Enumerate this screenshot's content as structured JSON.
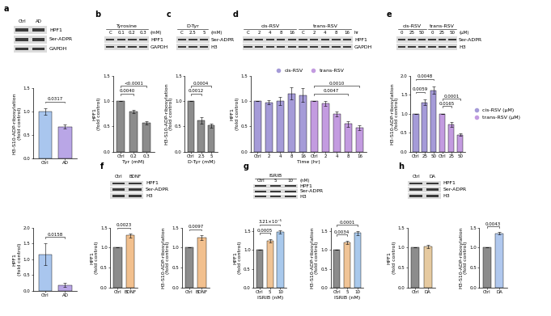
{
  "chart_data": [
    {
      "type": "bar",
      "y_label": "H3-S10-ADP-ribosylation\n(fold control)",
      "categories": [
        "Ctrl",
        "AD"
      ],
      "values": [
        1.0,
        0.68
      ],
      "errors": [
        0.07,
        0.04
      ],
      "colors": [
        "#a9c6ee",
        "#b9a6e6"
      ],
      "ylim": [
        0,
        1.5
      ],
      "yticks": [
        {
          "value": 0,
          "label": "0.0"
        },
        {
          "value": 0.5,
          "label": "0.5"
        },
        {
          "value": 1,
          "label": "1.0"
        },
        {
          "value": 1.5,
          "label": "1.5"
        }
      ],
      "annotations": [
        {
          "text": "0.0317",
          "from": 0,
          "to": 1
        }
      ]
    },
    {
      "type": "bar",
      "y_label": "HPF1\n(fold control)",
      "categories": [
        "Ctrl",
        "AD"
      ],
      "values": [
        1.15,
        0.18
      ],
      "errors": [
        0.35,
        0.06
      ],
      "colors": [
        "#a9c6ee",
        "#b9a6e6"
      ],
      "ylim": [
        0,
        2
      ],
      "yticks": [
        {
          "value": 0,
          "label": "0.0"
        },
        {
          "value": 0.5,
          "label": "0.5"
        },
        {
          "value": 1,
          "label": "1.0"
        },
        {
          "value": 1.5,
          "label": "1.5"
        },
        {
          "value": 2,
          "label": "2.0"
        }
      ],
      "annotations": [
        {
          "text": "0.0158",
          "from": 0,
          "to": 1
        }
      ]
    },
    {
      "type": "bar",
      "y_label": "HPF1\n(fold control)",
      "x_label": "Tyr (mM)",
      "categories": [
        "Ctrl",
        "0.2",
        "0.3"
      ],
      "values": [
        1.0,
        0.8,
        0.57
      ],
      "errors": [
        0.0,
        0.03,
        0.03
      ],
      "colors": [
        "#8c8c8c",
        "#8c8c8c",
        "#8c8c8c"
      ],
      "ylim": [
        0,
        1.5
      ],
      "yticks": [
        {
          "value": 0,
          "label": "0.0"
        },
        {
          "value": 0.5,
          "label": "0.5"
        },
        {
          "value": 1,
          "label": "1.0"
        },
        {
          "value": 1.5,
          "label": "1.5"
        }
      ],
      "annotations": [
        {
          "text": "0.0040",
          "from": 0,
          "to": 1
        },
        {
          "text": "<0.0001",
          "from": 0,
          "to": 2
        }
      ]
    },
    {
      "type": "bar",
      "y_label": "H3-S10-ADP-ribosylation\n(fold control)",
      "x_label": "D-Tyr (mM)",
      "categories": [
        "Ctrl",
        "2.5",
        "5"
      ],
      "values": [
        1.0,
        0.62,
        0.52
      ],
      "errors": [
        0.0,
        0.07,
        0.04
      ],
      "colors": [
        "#8c8c8c",
        "#8c8c8c",
        "#8c8c8c"
      ],
      "ylim": [
        0,
        1.5
      ],
      "yticks": [
        {
          "value": 0,
          "label": "0.0"
        },
        {
          "value": 0.5,
          "label": "0.5"
        },
        {
          "value": 1,
          "label": "1.0"
        },
        {
          "value": 1.5,
          "label": "1.5"
        }
      ],
      "annotations": [
        {
          "text": "0.0012",
          "from": 0,
          "to": 1
        },
        {
          "text": "0.0004",
          "from": 0,
          "to": 2
        }
      ]
    },
    {
      "type": "bar",
      "y_label": "HPF1\n(fold control)",
      "x_label": "Time (hr)",
      "categories": [
        "Ctrl",
        "2",
        "4",
        "8",
        "16",
        "Ctrl",
        "2",
        "4",
        "8",
        "16"
      ],
      "series": [
        {
          "name": "cis-RSV",
          "color": "#a59bd8",
          "values": [
            1.0,
            0.97,
            1.0,
            1.15,
            1.12,
            null,
            null,
            null,
            null,
            null
          ],
          "errors": [
            0.0,
            0.04,
            0.08,
            0.12,
            0.13,
            null,
            null,
            null,
            null,
            null
          ]
        },
        {
          "name": "trans-RSV",
          "color": "#c39be0",
          "values": [
            null,
            null,
            null,
            null,
            null,
            1.0,
            0.95,
            0.75,
            0.55,
            0.47
          ],
          "errors": [
            null,
            null,
            null,
            null,
            null,
            0.0,
            0.05,
            0.05,
            0.06,
            0.05
          ]
        }
      ],
      "legend": "top",
      "ylim": [
        0,
        1.5
      ],
      "yticks": [
        {
          "value": 0,
          "label": "0.0"
        },
        {
          "value": 0.5,
          "label": "0.5"
        },
        {
          "value": 1,
          "label": "1.0"
        },
        {
          "value": 1.5,
          "label": "1.5"
        }
      ],
      "annotations": [
        {
          "text": "0.0047",
          "from": 5,
          "to": 8
        },
        {
          "text": "0.0010",
          "from": 5,
          "to": 9
        }
      ]
    },
    {
      "type": "bar",
      "y_label": "H3-S10-ADP-ribosylation\n(fold control)",
      "categories": [
        "Ctrl",
        "25",
        "50",
        "Ctrl",
        "25",
        "50"
      ],
      "series": [
        {
          "name": "cis-RSV (μM)",
          "color": "#a59bd8",
          "values": [
            1.0,
            1.3,
            1.62,
            null,
            null,
            null
          ],
          "errors": [
            0.0,
            0.08,
            0.1,
            null,
            null,
            null
          ]
        },
        {
          "name": "trans-RSV (μM)",
          "color": "#c39be0",
          "values": [
            null,
            null,
            null,
            1.0,
            0.72,
            0.45
          ],
          "errors": [
            null,
            null,
            null,
            0.0,
            0.06,
            0.04
          ]
        }
      ],
      "legend": "right",
      "ylim": [
        0,
        2
      ],
      "yticks": [
        {
          "value": 0,
          "label": "0.0"
        },
        {
          "value": 0.5,
          "label": "0.5"
        },
        {
          "value": 1,
          "label": "1.0"
        },
        {
          "value": 1.5,
          "label": "1.5"
        },
        {
          "value": 2,
          "label": "2.0"
        }
      ],
      "annotations": [
        {
          "text": "0.0059",
          "from": 0,
          "to": 1
        },
        {
          "text": "0.0048",
          "from": 0,
          "to": 2
        },
        {
          "text": "0.0165",
          "from": 3,
          "to": 4
        },
        {
          "text": "0.0001",
          "from": 3,
          "to": 5
        }
      ]
    },
    {
      "type": "bar",
      "y_label": "HPF1\n(fold control)",
      "categories": [
        "Ctrl",
        "BDNF"
      ],
      "values": [
        1.0,
        1.3
      ],
      "errors": [
        0.0,
        0.05
      ],
      "colors": [
        "#8c8c8c",
        "#f2c08e"
      ],
      "ylim": [
        0,
        1.5
      ],
      "yticks": [
        {
          "value": 0,
          "label": "0.0"
        },
        {
          "value": 0.5,
          "label": "0.5"
        },
        {
          "value": 1,
          "label": "1.0"
        },
        {
          "value": 1.5,
          "label": "1.5"
        }
      ],
      "annotations": [
        {
          "text": "0.0023",
          "from": 0,
          "to": 1
        }
      ]
    },
    {
      "type": "bar",
      "y_label": "H3-S10-ADP-ribosylation\n(fold control)",
      "categories": [
        "Ctrl",
        "BDNF"
      ],
      "values": [
        1.0,
        1.25
      ],
      "errors": [
        0.0,
        0.06
      ],
      "colors": [
        "#8c8c8c",
        "#f2c08e"
      ],
      "ylim": [
        0,
        1.5
      ],
      "yticks": [
        {
          "value": 0,
          "label": "0.0"
        },
        {
          "value": 0.5,
          "label": "0.5"
        },
        {
          "value": 1,
          "label": "1.0"
        },
        {
          "value": 1.5,
          "label": "1.5"
        }
      ],
      "annotations": [
        {
          "text": "0.0097",
          "from": 0,
          "to": 1
        }
      ]
    },
    {
      "type": "bar",
      "y_label": "HPF1\n(fold control)",
      "x_label": "ISRIB (nM)",
      "categories": [
        "Ctrl",
        "5",
        "10"
      ],
      "values": [
        1.0,
        1.25,
        1.48
      ],
      "errors": [
        0.0,
        0.04,
        0.04
      ],
      "colors": [
        "#8c8c8c",
        "#f0c496",
        "#a9c9ec"
      ],
      "ylim": [
        0,
        1.6
      ],
      "yticks": [
        {
          "value": 0,
          "label": "0.0"
        },
        {
          "value": 0.5,
          "label": "0.5"
        },
        {
          "value": 1,
          "label": "1.0"
        },
        {
          "value": 1.5,
          "label": "1.5"
        }
      ],
      "annotations": [
        {
          "text": "0.0005",
          "from": 0,
          "to": 1
        },
        {
          "text": "3.21×10⁻⁵",
          "from": 0,
          "to": 2
        }
      ]
    },
    {
      "type": "bar",
      "y_label": "H3-S10-ADP-ribosylation\n(fold control)",
      "x_label": "ISRIB (nM)",
      "categories": [
        "Ctrl",
        "5",
        "10"
      ],
      "values": [
        1.0,
        1.2,
        1.45
      ],
      "errors": [
        0.0,
        0.05,
        0.06
      ],
      "colors": [
        "#8c8c8c",
        "#f0c496",
        "#a9c9ec"
      ],
      "ylim": [
        0,
        1.6
      ],
      "yticks": [
        {
          "value": 0,
          "label": "0.0"
        },
        {
          "value": 0.5,
          "label": "0.5"
        },
        {
          "value": 1,
          "label": "1.0"
        },
        {
          "value": 1.5,
          "label": "1.5"
        }
      ],
      "annotations": [
        {
          "text": "0.0034",
          "from": 0,
          "to": 1
        },
        {
          "text": "0.0001",
          "from": 0,
          "to": 2
        }
      ]
    },
    {
      "type": "bar",
      "y_label": "HPF1\n(fold control)",
      "categories": [
        "Ctrl",
        "DA"
      ],
      "values": [
        1.0,
        1.02
      ],
      "errors": [
        0.0,
        0.04
      ],
      "colors": [
        "#8c8c8c",
        "#e6caa0"
      ],
      "ylim": [
        0,
        1.5
      ],
      "yticks": [
        {
          "value": 0,
          "label": "0.0"
        },
        {
          "value": 0.5,
          "label": "0.5"
        },
        {
          "value": 1,
          "label": "1.0"
        },
        {
          "value": 1.5,
          "label": "1.5"
        }
      ],
      "annotations": []
    },
    {
      "type": "bar",
      "y_label": "H3-S10-ADP-ribosylation\n(fold control)",
      "categories": [
        "Ctrl",
        "DA"
      ],
      "values": [
        1.0,
        1.35
      ],
      "errors": [
        0.0,
        0.03
      ],
      "colors": [
        "#8c8c8c",
        "#b0c8ee"
      ],
      "ylim": [
        0,
        1.5
      ],
      "yticks": [
        {
          "value": 0,
          "label": "0.0"
        },
        {
          "value": 0.5,
          "label": "0.5"
        },
        {
          "value": 1,
          "label": "1.0"
        },
        {
          "value": 1.5,
          "label": "1.5"
        }
      ],
      "annotations": [
        {
          "text": "0.0043",
          "from": 0,
          "to": 1
        }
      ]
    }
  ],
  "blots": [
    {
      "panel": "a",
      "columns": [
        "Ctrl",
        "AD"
      ],
      "rows": [
        "HPF1",
        "Ser-ADPR",
        "GAPDH"
      ]
    },
    {
      "panel": "b",
      "title": "Tyrosine",
      "columns": [
        "C",
        "0.1",
        "0.2",
        "0.3"
      ],
      "unit": "(mM)",
      "rows": [
        "HPF1",
        "GAPDH"
      ]
    },
    {
      "panel": "c",
      "title": "D-Tyr",
      "columns": [
        "C",
        "2.5",
        "5"
      ],
      "unit": "(mM)",
      "rows": [
        "Ser-ADPR",
        "H3"
      ]
    },
    {
      "panel": "d",
      "groups": [
        {
          "name": "cis-RSV",
          "columns": [
            "C",
            "2",
            "4",
            "8",
            "16"
          ]
        },
        {
          "name": "trans-RSV",
          "columns": [
            "C",
            "2",
            "4",
            "8",
            "16"
          ]
        }
      ],
      "unit": "hr",
      "rows": [
        "HPF1",
        "GAPDH"
      ]
    },
    {
      "panel": "e",
      "groups": [
        {
          "name": "cis-RSV",
          "columns": [
            "0",
            "25",
            "50"
          ]
        },
        {
          "name": "trans-RSV",
          "columns": [
            "0",
            "25",
            "50"
          ]
        }
      ],
      "unit": "(μM)",
      "rows": [
        "Ser-ADPR",
        "H3"
      ]
    },
    {
      "panel": "f",
      "columns": [
        "Ctrl",
        "BDNF"
      ],
      "rows": [
        "HPF1",
        "Ser-ADPR",
        "H3"
      ]
    },
    {
      "panel": "g",
      "title": "ISRIB",
      "columns": [
        "Ctrl",
        "5",
        "10"
      ],
      "unit": "(nM)",
      "rows": [
        "HPF1",
        "Ser-ADPR",
        "H3"
      ]
    },
    {
      "panel": "h",
      "columns": [
        "Ctrl",
        "DA"
      ],
      "rows": [
        "HPF1",
        "Ser-ADPR",
        "H3"
      ]
    }
  ]
}
